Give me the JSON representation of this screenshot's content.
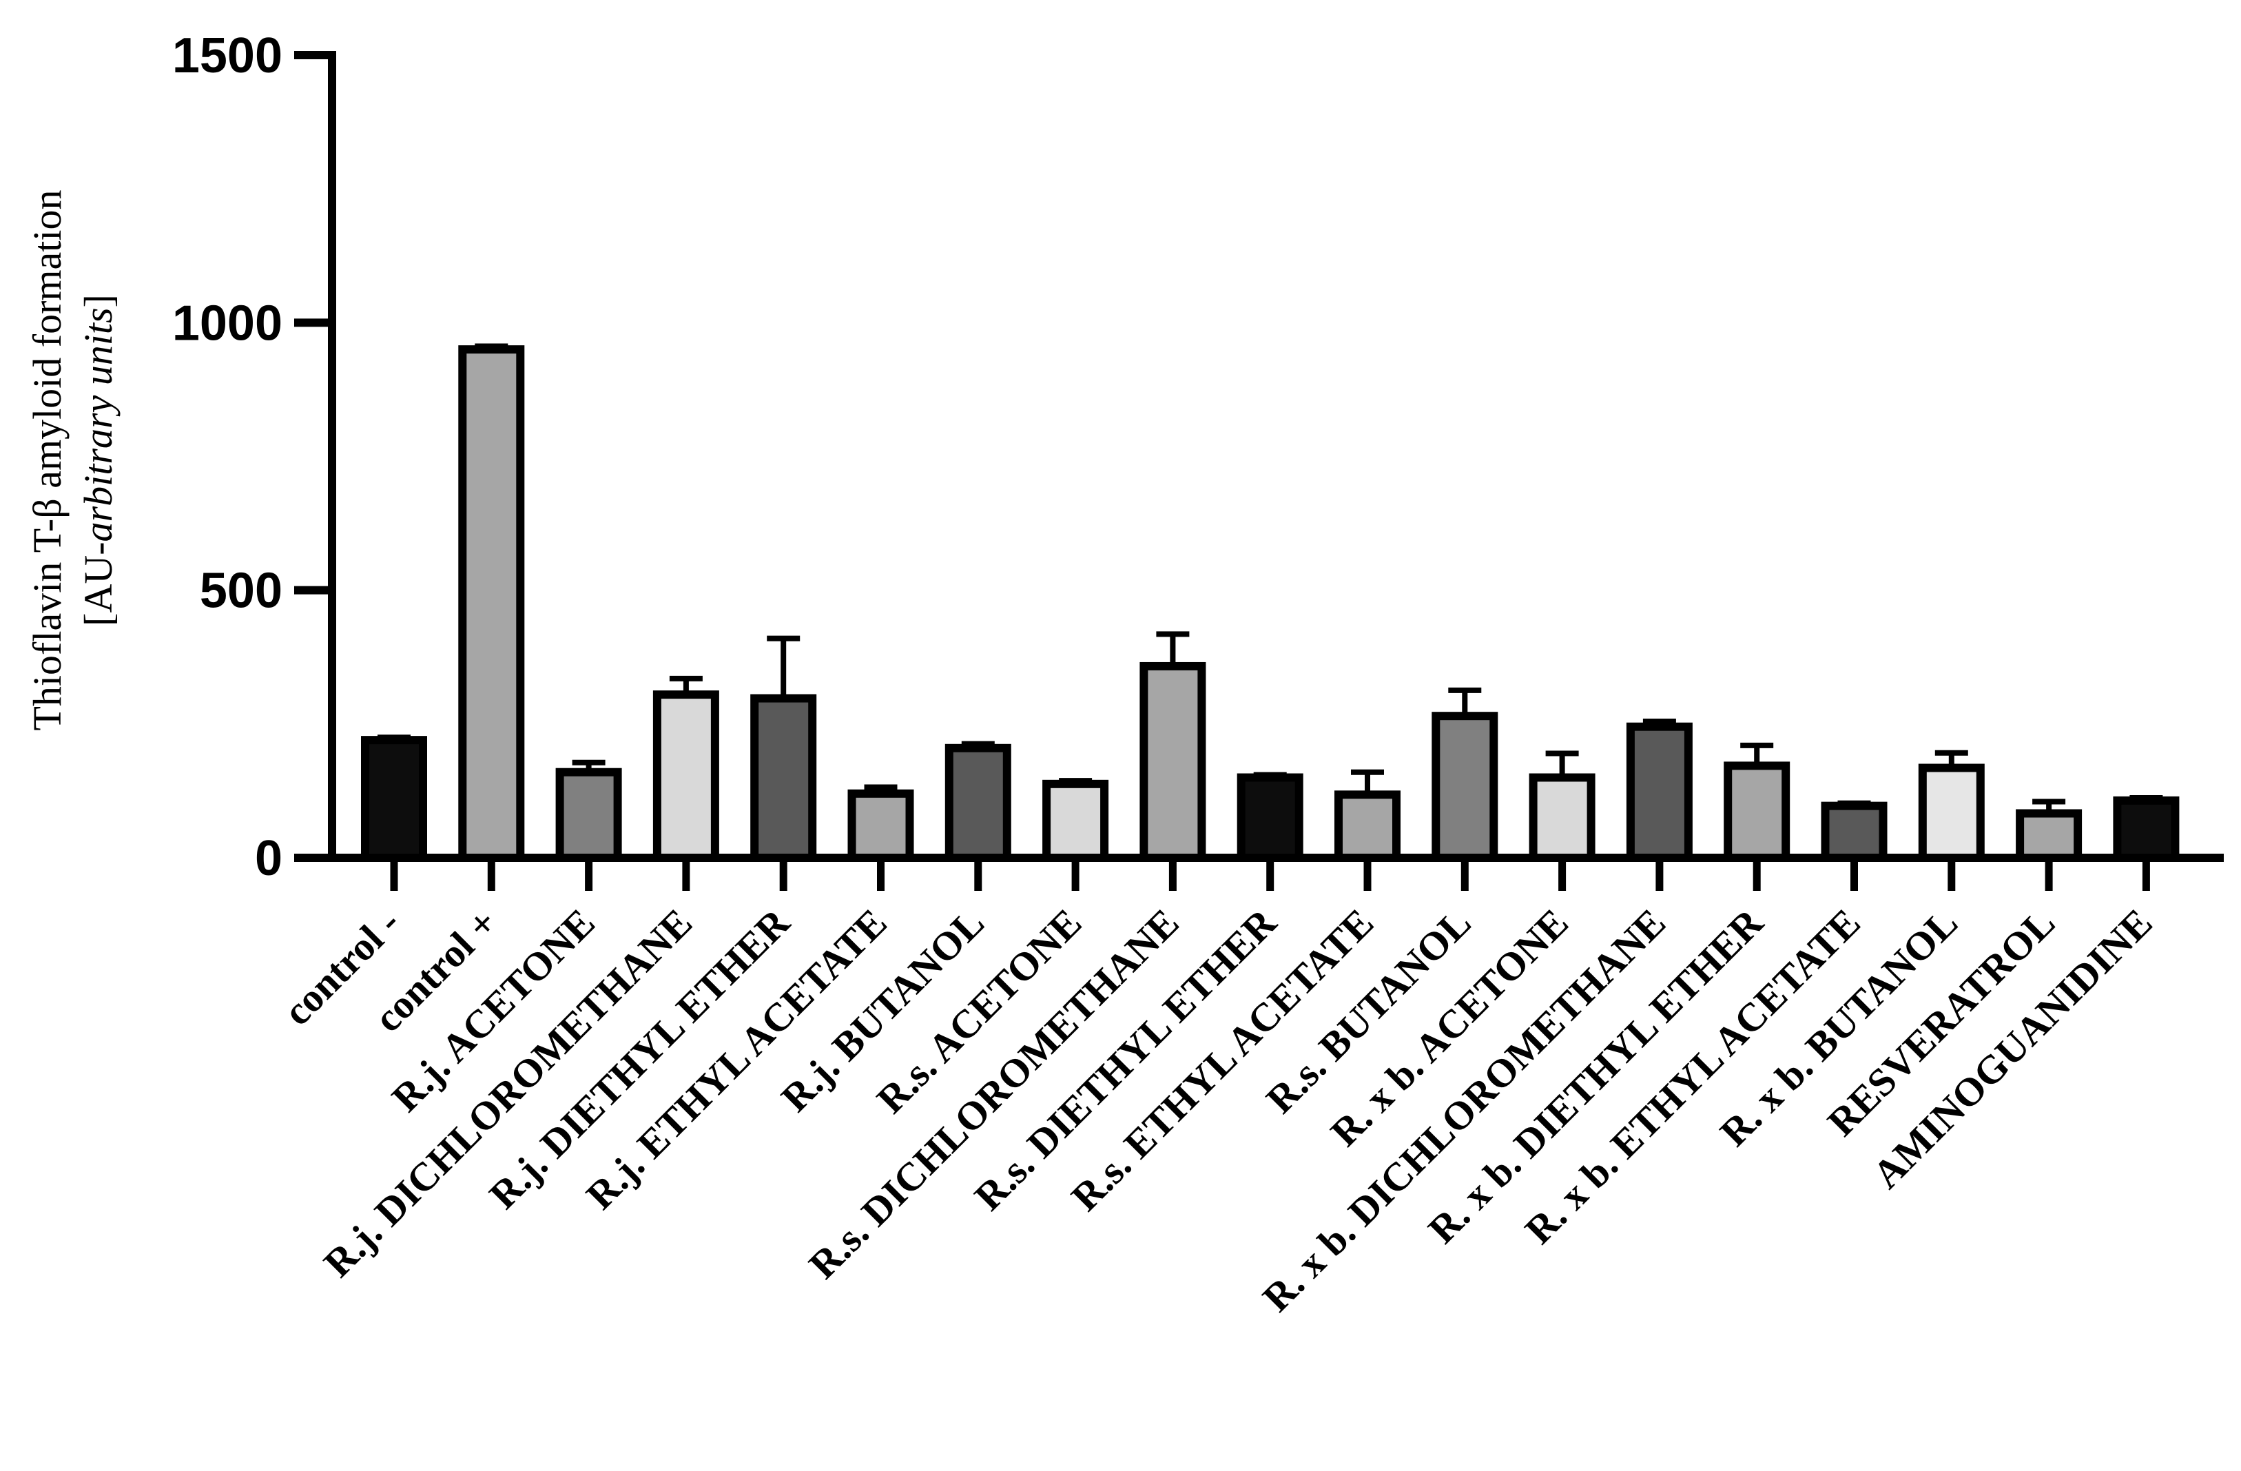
{
  "chart_data": {
    "type": "bar",
    "ylabel_line1": "Thioflavin T-β amyloid formation",
    "ylabel_line2_prefix": "[AU-",
    "ylabel_line2_italic": "arbitrary units",
    "ylabel_line2_suffix": "]",
    "ylim": [
      0,
      1500
    ],
    "yticks": [
      0,
      500,
      1000,
      1500
    ],
    "ytick_labels": [
      "0",
      "500",
      "1000",
      "1500"
    ],
    "grid": false,
    "legend": "none",
    "categories": [
      "control -",
      "control +",
      "R.j. ACETONE",
      "R.j. DICHLOROMETHANE",
      "R.j. DIETHYL ETHER",
      "R.j. ETHYL ACETATE",
      "R.j. BUTANOL",
      "R.s. ACETONE",
      "R.s. DICHLOROMETHANE",
      "R.s. DIETHYL ETHER",
      "R.s. ETHYL ACETATE",
      "R.s. BUTANOL",
      "R. x b. ACETONE",
      "R. x b. DICHLOROMETHANE",
      "R. x b.  DIETHYL ETHER",
      "R. x b.  ETHYL ACETATE",
      "R. x b. BUTANOL",
      "RESVERATROL",
      "AMINOGUANIDINE"
    ],
    "values": [
      220,
      950,
      160,
      305,
      298,
      120,
      205,
      138,
      358,
      150,
      118,
      265,
      150,
      245,
      172,
      97,
      168,
      83,
      107
    ],
    "errors": [
      5,
      6,
      18,
      30,
      112,
      12,
      8,
      6,
      60,
      5,
      42,
      48,
      45,
      10,
      38,
      5,
      28,
      22,
      5
    ],
    "bar_colors": [
      "#0d0d0d",
      "#a6a6a6",
      "#808080",
      "#d9d9d9",
      "#595959",
      "#a6a6a6",
      "#595959",
      "#d9d9d9",
      "#a6a6a6",
      "#0d0d0d",
      "#a6a6a6",
      "#808080",
      "#d9d9d9",
      "#595959",
      "#a6a6a6",
      "#595959",
      "#e6e6e6",
      "#a6a6a6",
      "#0d0d0d"
    ]
  }
}
